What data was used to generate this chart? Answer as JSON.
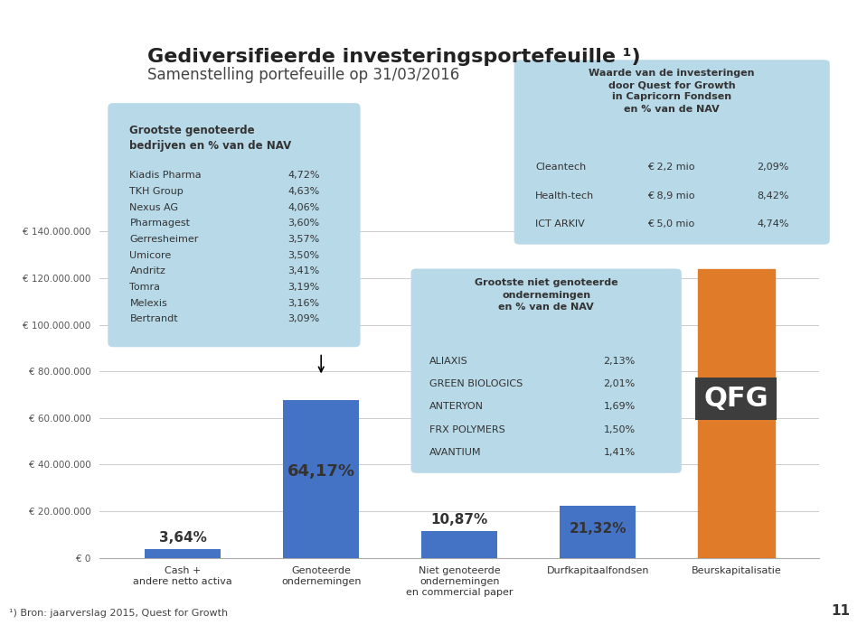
{
  "title_line1": "Gediversifieerde investeringsportefeuille ¹)",
  "title_line2": "Samenstelling portefeuille op 31/03/2016",
  "background_color": "#ffffff",
  "bar_categories": [
    "Cash +\nandere netto activa",
    "Genoteerde\nondernemingen",
    "Niet genoteerde\nondernemingen\nen commercial paper",
    "Durfkapitaalfondsen",
    "Beurskapitalisatie"
  ],
  "bar_values": [
    3840000,
    67700000,
    11460000,
    22480000,
    124000000
  ],
  "bar_colors": [
    "#4472c4",
    "#4472c4",
    "#4472c4",
    "#4472c4",
    "#e07b2a"
  ],
  "bar_percentages": [
    "3,64%",
    "64,17%",
    "10,87%",
    "21,32%",
    ""
  ],
  "ylim": [
    0,
    155000000
  ],
  "yticks": [
    0,
    20000000,
    40000000,
    60000000,
    80000000,
    100000000,
    120000000,
    140000000
  ],
  "ytick_labels": [
    "€ 0",
    "€ 20.000.000",
    "€ 40.000.000",
    "€ 60.000.000",
    "€ 80.000.000",
    "€ 100.000.000",
    "€ 120.000.000",
    "€ 140.000.000"
  ],
  "qfg_label": "QFG",
  "qfg_box_color": "#3d3d3d",
  "qfg_text_color": "#ffffff",
  "footer_note": "¹) Bron: jaarverslag 2015, Quest for Growth",
  "page_number": "11",
  "top_bar_color": "#1f5fa6",
  "header_bg": "#1f5fa6",
  "left_box_title": "Grootste genoteerde\nbedrijven en % van de NAV",
  "left_box_items": [
    [
      "Kiadis Pharma",
      "4,72%"
    ],
    [
      "TKH Group",
      "4,63%"
    ],
    [
      "Nexus AG",
      "4,06%"
    ],
    [
      "Pharmagest",
      "3,60%"
    ],
    [
      "Gerresheimer",
      "3,57%"
    ],
    [
      "Umicore",
      "3,50%"
    ],
    [
      "Andritz",
      "3,41%"
    ],
    [
      "Tomra",
      "3,19%"
    ],
    [
      "Melexis",
      "3,16%"
    ],
    [
      "Bertrandt",
      "3,09%"
    ]
  ],
  "left_box_color": "#b8d9e8",
  "right_box_title": "Waarde van de investeringen\ndoor Quest for Growth\nin Capricorn Fondsen\nen % van de NAV",
  "right_box_items": [
    [
      "Cleantech",
      "€ 2,2 mio",
      "2,09%"
    ],
    [
      "Health-tech",
      "€ 8,9 mio",
      "8,42%"
    ],
    [
      "ICT ARKIV",
      "€ 5,0 mio",
      "4,74%"
    ]
  ],
  "right_box_color": "#b8d9e8",
  "bottom_box_title": "Grootste niet genoteerde\nondernemingen\nen % van de NAV",
  "bottom_box_items": [
    [
      "ALIAXIS",
      "2,13%"
    ],
    [
      "GREEN BIOLOGICS",
      "2,01%"
    ],
    [
      "ANTERYON",
      "1,69%"
    ],
    [
      "FRX POLYMERS",
      "1,50%"
    ],
    [
      "AVANTIUM",
      "1,41%"
    ]
  ],
  "bottom_box_color": "#b8d9e8"
}
